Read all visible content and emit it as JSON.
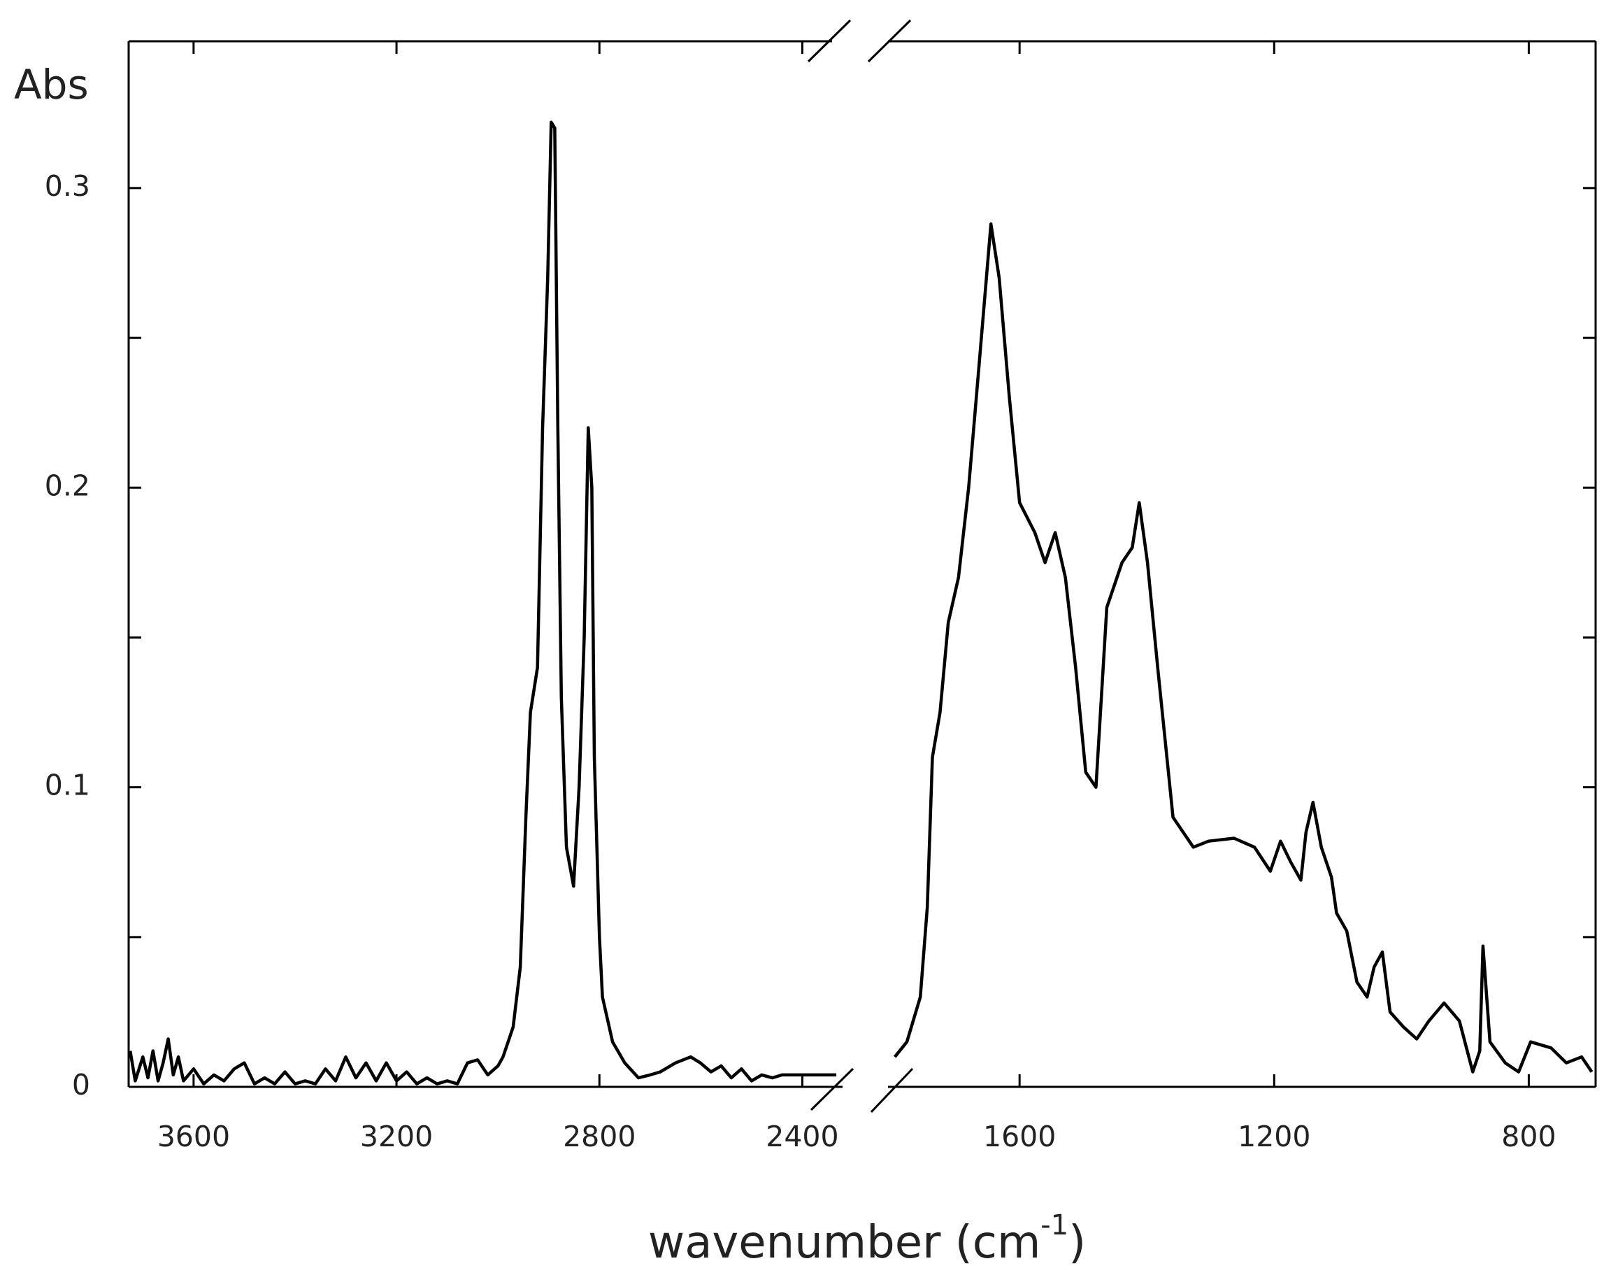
{
  "chart_data": {
    "type": "line",
    "ylabel": "Abs",
    "xlabel": {
      "text": "wavenumber (cm",
      "superscript": "-1",
      "suffix": ")"
    },
    "ylim": [
      0,
      0.349
    ],
    "yticks": [
      0,
      0.1,
      0.2,
      0.3
    ],
    "minor_yticks": [
      0.05,
      0.15,
      0.25
    ],
    "color": "#000000",
    "panels": [
      {
        "xlim": [
          3728,
          2300
        ],
        "xticks": [
          3600,
          3200,
          2800,
          2400
        ],
        "x": [
          3725,
          3715,
          3700,
          3690,
          3680,
          3670,
          3660,
          3650,
          3640,
          3630,
          3620,
          3600,
          3580,
          3560,
          3540,
          3520,
          3500,
          3480,
          3460,
          3440,
          3420,
          3400,
          3380,
          3360,
          3340,
          3320,
          3300,
          3280,
          3260,
          3240,
          3220,
          3200,
          3180,
          3160,
          3140,
          3120,
          3100,
          3080,
          3060,
          3040,
          3020,
          3000,
          2990,
          2970,
          2956,
          2945,
          2936,
          2922,
          2912,
          2902,
          2895,
          2888,
          2882,
          2875,
          2865,
          2851,
          2840,
          2830,
          2822,
          2815,
          2810,
          2800,
          2794,
          2774,
          2750,
          2723,
          2700,
          2680,
          2650,
          2620,
          2601,
          2580,
          2560,
          2540,
          2520,
          2500,
          2480,
          2459,
          2440,
          2400,
          2333
        ],
        "values": [
          0.012,
          0.002,
          0.01,
          0.003,
          0.012,
          0.002,
          0.008,
          0.016,
          0.004,
          0.01,
          0.002,
          0.006,
          0.001,
          0.004,
          0.002,
          0.006,
          0.008,
          0.001,
          0.003,
          0.001,
          0.005,
          0.001,
          0.002,
          0.001,
          0.006,
          0.002,
          0.01,
          0.003,
          0.008,
          0.002,
          0.008,
          0.002,
          0.005,
          0.001,
          0.003,
          0.001,
          0.002,
          0.001,
          0.008,
          0.009,
          0.004,
          0.007,
          0.01,
          0.02,
          0.04,
          0.09,
          0.125,
          0.14,
          0.22,
          0.27,
          0.322,
          0.32,
          0.22,
          0.13,
          0.08,
          0.067,
          0.1,
          0.15,
          0.22,
          0.2,
          0.11,
          0.05,
          0.03,
          0.015,
          0.008,
          0.003,
          0.004,
          0.005,
          0.008,
          0.01,
          0.008,
          0.005,
          0.007,
          0.003,
          0.006,
          0.002,
          0.004,
          0.003,
          0.004,
          0.004,
          0.004
        ]
      },
      {
        "xlim": [
          1810,
          695
        ],
        "xticks": [
          1600,
          1200,
          800
        ],
        "x": [
          1796,
          1777,
          1756,
          1745,
          1737,
          1725,
          1712,
          1696,
          1680,
          1664,
          1645,
          1632,
          1616,
          1600,
          1576,
          1560,
          1544,
          1528,
          1512,
          1496,
          1480,
          1463,
          1439,
          1423,
          1412,
          1399,
          1383,
          1359,
          1343,
          1327,
          1303,
          1263,
          1231,
          1206,
          1190,
          1174,
          1158,
          1150,
          1139,
          1126,
          1110,
          1102,
          1086,
          1070,
          1054,
          1043,
          1030,
          1018,
          997,
          976,
          957,
          933,
          909,
          888,
          877,
          872,
          861,
          837,
          816,
          797,
          765,
          741,
          717,
          701
        ],
        "values": [
          0.01,
          0.015,
          0.03,
          0.06,
          0.11,
          0.125,
          0.155,
          0.17,
          0.2,
          0.24,
          0.288,
          0.27,
          0.23,
          0.195,
          0.185,
          0.175,
          0.185,
          0.17,
          0.14,
          0.105,
          0.1,
          0.16,
          0.175,
          0.18,
          0.195,
          0.175,
          0.14,
          0.09,
          0.085,
          0.08,
          0.082,
          0.083,
          0.08,
          0.072,
          0.082,
          0.075,
          0.069,
          0.085,
          0.095,
          0.08,
          0.07,
          0.058,
          0.052,
          0.035,
          0.03,
          0.04,
          0.045,
          0.025,
          0.02,
          0.016,
          0.022,
          0.028,
          0.022,
          0.005,
          0.012,
          0.047,
          0.015,
          0.008,
          0.005,
          0.015,
          0.013,
          0.008,
          0.01,
          0.005
        ]
      }
    ]
  }
}
